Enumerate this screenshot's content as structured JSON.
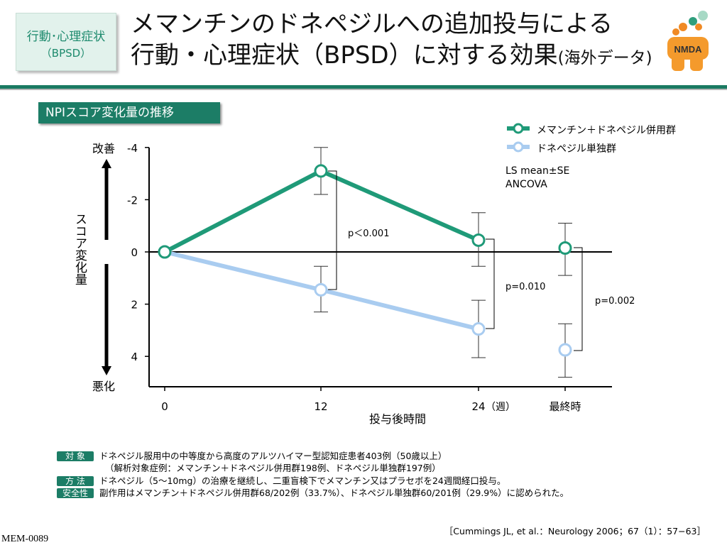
{
  "badge": {
    "line1": "行動･心理症状",
    "line2": "（BPSD）"
  },
  "title": {
    "line1": "メマンチンのドネペジルへの追加投与による",
    "line2": "行動・心理症状（BPSD）に対する効果",
    "line2_small": "(海外データ)"
  },
  "logo": {
    "text": "NMDA"
  },
  "section_label": "NPIスコア変化量の推移",
  "legend": [
    {
      "label": "メマンチン＋ドネペジル併用群",
      "color": "#1f9a78"
    },
    {
      "label": "ドネペジル単独群",
      "color": "#a9ccf0"
    }
  ],
  "note": {
    "line1": "LS mean±SE",
    "line2": "ANCOVA"
  },
  "axis": {
    "y_title": "スコア変化量",
    "y_top": "改善",
    "y_bottom": "悪化",
    "x_title": "投与後時間",
    "x_unit": "（週）"
  },
  "chart_data": {
    "type": "line",
    "categories": [
      "0",
      "12",
      "24",
      "最終時"
    ],
    "y_ticks": [
      "-4",
      "-2",
      "0",
      "2",
      "4"
    ],
    "ylim": [
      -4,
      5
    ],
    "y_inverted": true,
    "series": [
      {
        "name": "メマンチン＋ドネペジル併用群",
        "color": "#1f9a78",
        "values": [
          0,
          -3.1,
          -0.45,
          -0.15
        ],
        "se_low": [
          null,
          -4.0,
          -1.5,
          -1.1
        ],
        "se_high": [
          null,
          -2.2,
          0.55,
          0.9
        ]
      },
      {
        "name": "ドネペジル単独群",
        "color": "#a9ccf0",
        "values": [
          0,
          1.45,
          2.95,
          3.75
        ],
        "se_low": [
          null,
          0.55,
          1.85,
          2.75
        ],
        "se_high": [
          null,
          2.3,
          4.05,
          4.8
        ]
      }
    ],
    "annotations": [
      "p＜0.001",
      "p=0.010",
      "p=0.002"
    ]
  },
  "footer": {
    "subject_tag": "対 象",
    "subject_text": "ドネペジル服用中の中等度から高度のアルツハイマー型認知症患者403例（50歳以上）",
    "subject_text2": "（解析対象症例：メマンチン＋ドネペジル併用群198例、ドネペジル単独群197例）",
    "method_tag": "方 法",
    "method_text": "ドネペジル（5～10mg）の治療を継続し、二重盲検下でメマンチン又はプラセボを24週間経口投与。",
    "safety_tag": "安全性",
    "safety_text": "副作用はメマンチン＋ドネペジル併用群68/202例（33.7%）、ドネペジル単独群60/201例（29.9%）に認められた。",
    "citation": "［Cummings JL, et al.：Neurology 2006；67（1）：57−63］",
    "code": "MEM-0089"
  }
}
